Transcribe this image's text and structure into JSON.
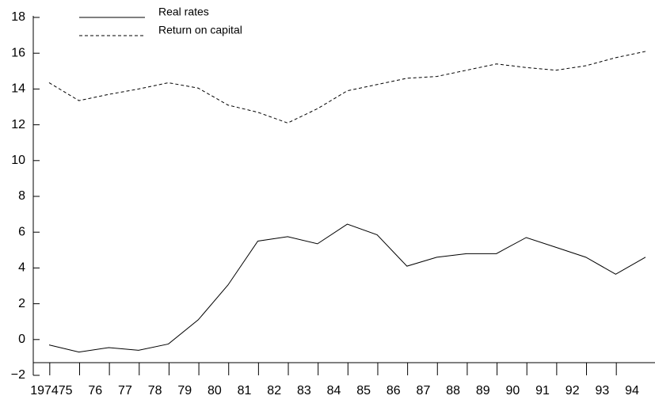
{
  "chart_data": {
    "type": "line",
    "categories": [
      "1974",
      "75",
      "76",
      "77",
      "78",
      "79",
      "80",
      "81",
      "82",
      "83",
      "84",
      "85",
      "86",
      "87",
      "88",
      "89",
      "90",
      "91",
      "92",
      "93",
      "94"
    ],
    "series": [
      {
        "name": "Real rates",
        "color": "#000000",
        "dash": false,
        "values": [
          -0.3,
          -0.7,
          -0.45,
          -0.6,
          -0.25,
          1.1,
          3.05,
          5.5,
          5.75,
          5.35,
          6.45,
          5.85,
          4.1,
          4.6,
          4.8,
          4.8,
          5.7,
          5.15,
          4.6,
          3.65,
          4.6
        ]
      },
      {
        "name": "Return on capital",
        "color": "#000000",
        "dash": true,
        "values": [
          14.35,
          13.35,
          13.7,
          14.0,
          14.35,
          14.05,
          13.1,
          12.7,
          12.1,
          12.9,
          13.9,
          14.25,
          14.6,
          14.7,
          15.05,
          15.4,
          15.2,
          15.05,
          15.3,
          15.75,
          16.1
        ]
      }
    ],
    "ylim": [
      -2,
      18
    ],
    "yticks": [
      {
        "value": -2,
        "label": "−2"
      },
      0,
      2,
      4,
      6,
      8,
      10,
      12,
      14,
      16,
      18
    ]
  }
}
